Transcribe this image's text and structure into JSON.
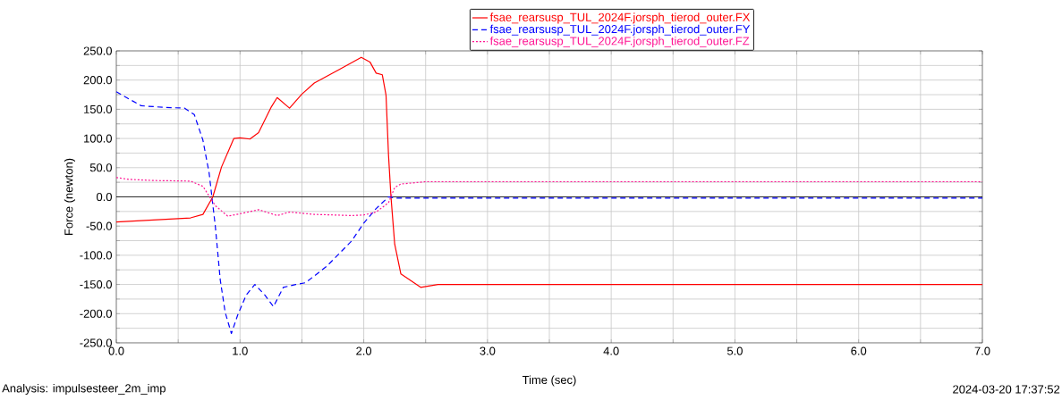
{
  "chart_data": {
    "type": "line",
    "xlabel": "Time (sec)",
    "ylabel": "Force (newton)",
    "annotations": [
      "Analysis:  impulsesteer_2m_imp",
      "2024-03-20 17:37:52"
    ],
    "xlim": [
      0,
      7
    ],
    "ylim": [
      -250,
      250
    ],
    "xticks": [
      {
        "value": 0,
        "label": "0.0"
      },
      {
        "value": 0.5,
        "label": null
      },
      {
        "value": 1,
        "label": "1.0"
      },
      {
        "value": 1.5,
        "label": null
      },
      {
        "value": 2,
        "label": "2.0"
      },
      {
        "value": 2.5,
        "label": null
      },
      {
        "value": 3,
        "label": "3.0"
      },
      {
        "value": 3.5,
        "label": null
      },
      {
        "value": 4,
        "label": "4.0"
      },
      {
        "value": 4.5,
        "label": null
      },
      {
        "value": 5,
        "label": "5.0"
      },
      {
        "value": 5.5,
        "label": null
      },
      {
        "value": 6,
        "label": "6.0"
      },
      {
        "value": 6.5,
        "label": null
      },
      {
        "value": 7,
        "label": "7.0"
      }
    ],
    "yticks": [
      {
        "value": -250,
        "label": "-250.0"
      },
      {
        "value": -225,
        "label": null
      },
      {
        "value": -200,
        "label": "-200.0"
      },
      {
        "value": -175,
        "label": null
      },
      {
        "value": -150,
        "label": "-150.0"
      },
      {
        "value": -125,
        "label": null
      },
      {
        "value": -100,
        "label": "-100.0"
      },
      {
        "value": -75,
        "label": null
      },
      {
        "value": -50,
        "label": "-50.0"
      },
      {
        "value": -25,
        "label": null
      },
      {
        "value": 0,
        "label": "0.0"
      },
      {
        "value": 25,
        "label": null
      },
      {
        "value": 50,
        "label": "50.0"
      },
      {
        "value": 75,
        "label": null
      },
      {
        "value": 100,
        "label": "100.0"
      },
      {
        "value": 125,
        "label": null
      },
      {
        "value": 150,
        "label": "150.0"
      },
      {
        "value": 175,
        "label": null
      },
      {
        "value": 200,
        "label": "200.0"
      },
      {
        "value": 225,
        "label": null
      },
      {
        "value": 250,
        "label": "250.0"
      }
    ],
    "grid": true,
    "legend": "top",
    "marker": "none",
    "ref_lines": [
      {
        "axis": "y",
        "value": 0,
        "color": "#000000"
      }
    ],
    "series": [
      {
        "name": "fsae_rearsusp_TUL_2024F.jorsph_tierod_outer.FX",
        "color": "#ff0000",
        "line_style": "solid",
        "x": [
          0,
          0.6,
          0.7,
          0.78,
          0.85,
          0.95,
          1.0,
          1.08,
          1.15,
          1.25,
          1.3,
          1.4,
          1.5,
          1.6,
          1.8,
          1.98,
          2.05,
          2.1,
          2.15,
          2.18,
          2.2,
          2.22,
          2.25,
          2.3,
          2.46,
          2.6,
          3.0,
          7.0
        ],
        "values": [
          -43,
          -36,
          -30,
          0,
          51,
          100,
          101,
          99,
          110,
          153,
          170,
          152,
          176,
          195,
          218,
          239,
          231,
          212,
          209,
          174,
          72,
          0,
          -81,
          -132,
          -155,
          -150,
          -150,
          -150
        ]
      },
      {
        "name": "fsae_rearsusp_TUL_2024F.jorsph_tierod_outer.FY",
        "color": "#0000ff",
        "line_style": "dashed",
        "x": [
          0,
          0.2,
          0.4,
          0.55,
          0.63,
          0.7,
          0.75,
          0.8,
          0.84,
          0.88,
          0.93,
          0.98,
          1.05,
          1.12,
          1.2,
          1.27,
          1.35,
          1.45,
          1.53,
          1.7,
          1.9,
          2.0,
          2.1,
          2.2,
          2.25,
          7.0
        ],
        "values": [
          180,
          156,
          153,
          152,
          141,
          97,
          41,
          -50,
          -142,
          -198,
          -234,
          -203,
          -168,
          -150,
          -168,
          -188,
          -155,
          -150,
          -147,
          -119,
          -76,
          -45,
          -20,
          0,
          -2,
          -2
        ]
      },
      {
        "name": "fsae_rearsusp_TUL_2024F.jorsph_tierod_outer.FZ",
        "color": "#ff1493",
        "line_style": "dotted",
        "x": [
          0,
          0.1,
          0.3,
          0.6,
          0.7,
          0.8,
          0.9,
          1.0,
          1.15,
          1.3,
          1.4,
          1.6,
          1.9,
          2.0,
          2.1,
          2.2,
          2.25,
          2.3,
          2.5,
          7.0
        ],
        "values": [
          33,
          30,
          28,
          27,
          18,
          -15,
          -33,
          -29,
          -22,
          -32,
          -26,
          -30,
          -32,
          -31,
          -26,
          -10,
          16,
          22,
          26,
          26
        ]
      }
    ]
  }
}
